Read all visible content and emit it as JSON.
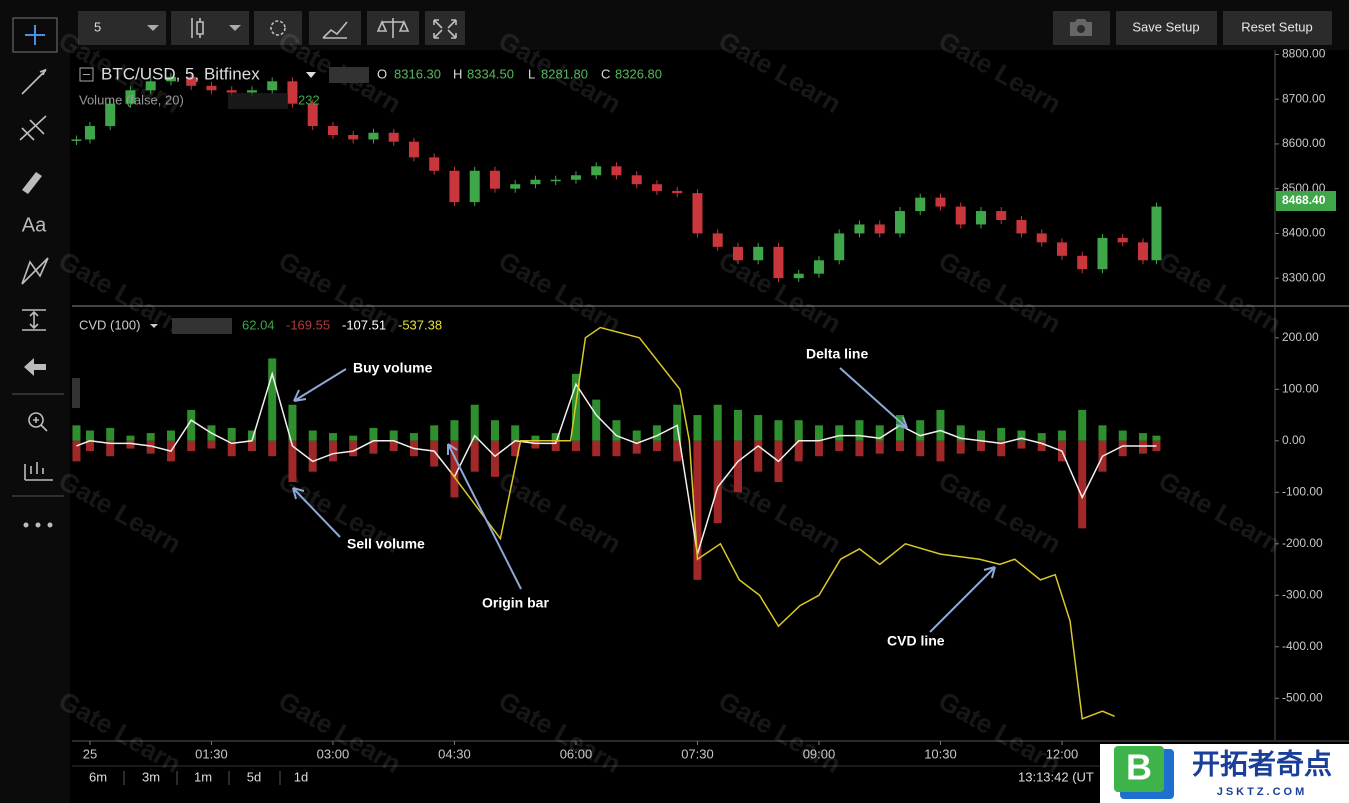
{
  "ui": {
    "interval": "5",
    "save": "Save Setup",
    "reset": "Reset Setup",
    "text_tool": "Aa",
    "watermark": "Gate Learn",
    "price_legend": {
      "symbol": "BTC/USD, 5, Bitfinex",
      "o_label": "O",
      "o": "8316.30",
      "h_label": "H",
      "h": "8334.50",
      "l_label": "L",
      "l": "8281.80",
      "c_label": "C",
      "c": "8326.80"
    },
    "volume_legend": {
      "name": "Volume (false, 20)",
      "value": "232"
    },
    "cvd_legend": {
      "name": "CVD (100)",
      "v1": "62.04",
      "v2": "-169.55",
      "v3": "-107.51",
      "v4": "-537.38"
    },
    "last_price": "8468.40",
    "ranges": [
      "6m",
      "3m",
      "1m",
      "5d",
      "1d"
    ],
    "clock": "13:13:42 (UT",
    "logo": {
      "letter": "B",
      "name": "开拓者奇点",
      "site": "JSKTZ.COM"
    }
  },
  "chart_data": [
    {
      "type": "candlestick",
      "up_color": "#3fa64a",
      "down_color": "#c9373c",
      "x": [
        -10,
        0,
        15,
        30,
        45,
        60,
        75,
        90,
        105,
        120,
        135,
        150,
        165,
        180,
        195,
        210,
        225,
        240,
        255,
        270,
        285,
        300,
        315,
        330,
        345,
        360,
        375,
        390,
        405,
        420,
        435,
        450,
        465,
        480,
        495,
        510,
        525,
        540,
        555,
        570,
        585,
        600,
        615,
        630,
        645,
        660,
        675,
        690,
        705,
        720,
        735,
        750,
        765,
        780,
        790
      ],
      "close": [
        8610,
        8640,
        8690,
        8720,
        8740,
        8750,
        8730,
        8720,
        8715,
        8720,
        8740,
        8690,
        8640,
        8620,
        8610,
        8625,
        8605,
        8570,
        8540,
        8470,
        8540,
        8500,
        8510,
        8520,
        8520,
        8530,
        8550,
        8530,
        8510,
        8495,
        8490,
        8400,
        8370,
        8340,
        8370,
        8300,
        8310,
        8340,
        8400,
        8420,
        8400,
        8450,
        8480,
        8460,
        8420,
        8450,
        8430,
        8400,
        8380,
        8350,
        8320,
        8390,
        8380,
        8340,
        8460
      ],
      "xlim": [
        -13.3,
        877.8
      ],
      "ylim": [
        8240,
        8810
      ],
      "yticks": [
        {
          "value": 8800,
          "label": "8800.00"
        },
        {
          "value": 8700,
          "label": "8700.00"
        },
        {
          "value": 8600,
          "label": "8600.00"
        },
        {
          "value": 8500,
          "label": "8500.00"
        },
        {
          "value": 8400,
          "label": "8400.00"
        },
        {
          "value": 8300,
          "label": "8300.00"
        }
      ]
    },
    {
      "type": "line",
      "xlim": [
        -13.3,
        877.8
      ],
      "ylim": [
        -581,
        254
      ],
      "x": [
        -10,
        0,
        15,
        30,
        45,
        60,
        75,
        90,
        105,
        120,
        135,
        150,
        165,
        180,
        195,
        210,
        225,
        240,
        255,
        270,
        285,
        300,
        315,
        330,
        345,
        360,
        375,
        390,
        405,
        420,
        435,
        450,
        465,
        480,
        495,
        510,
        525,
        540,
        555,
        570,
        585,
        600,
        615,
        630,
        645,
        660,
        675,
        690,
        705,
        720,
        735,
        750,
        765,
        780,
        790
      ],
      "buy": {
        "name": "Buy volume",
        "color": "#2f8f2f",
        "values": [
          30,
          20,
          25,
          10,
          15,
          20,
          60,
          30,
          25,
          20,
          160,
          70,
          20,
          15,
          10,
          25,
          20,
          15,
          30,
          40,
          70,
          40,
          30,
          10,
          15,
          130,
          80,
          40,
          20,
          30,
          70,
          50,
          70,
          60,
          50,
          40,
          40,
          30,
          30,
          40,
          30,
          50,
          40,
          60,
          30,
          20,
          25,
          20,
          15,
          20,
          60,
          30,
          20,
          15,
          10
        ]
      },
      "sell": {
        "name": "Sell volume",
        "color": "#a02828",
        "values": [
          -40,
          -20,
          -30,
          -15,
          -25,
          -40,
          -20,
          -15,
          -30,
          -20,
          -30,
          -80,
          -60,
          -40,
          -30,
          -25,
          -20,
          -30,
          -50,
          -110,
          -60,
          -70,
          -30,
          -15,
          -20,
          -20,
          -30,
          -30,
          -25,
          -20,
          -40,
          -270,
          -160,
          -100,
          -60,
          -80,
          -40,
          -30,
          -20,
          -30,
          -25,
          -20,
          -30,
          -40,
          -25,
          -20,
          -30,
          -15,
          -20,
          -40,
          -170,
          -60,
          -30,
          -25,
          -20
        ]
      },
      "delta": {
        "name": "Delta line",
        "color": "#f0f0f0",
        "values": [
          -10,
          0,
          -5,
          -5,
          -10,
          -20,
          40,
          15,
          -5,
          0,
          130,
          -10,
          -40,
          -25,
          -20,
          0,
          0,
          -15,
          -20,
          -70,
          10,
          -30,
          0,
          -5,
          -5,
          110,
          50,
          10,
          -5,
          10,
          30,
          -220,
          -90,
          -40,
          -10,
          -40,
          0,
          0,
          10,
          10,
          5,
          30,
          10,
          20,
          5,
          0,
          -5,
          5,
          -5,
          -20,
          -110,
          -30,
          -10,
          -10,
          -10
        ]
      },
      "cvd": {
        "name": "CVD line",
        "color": "#d8c828",
        "x": [
          267,
          304,
          319,
          356,
          367,
          378,
          407,
          437,
          444,
          450,
          467,
          481,
          496,
          510,
          526,
          540,
          556,
          570,
          585,
          604,
          630,
          659,
          674,
          685,
          704,
          715,
          726,
          735,
          750,
          759
        ],
        "values": [
          -60,
          -190,
          0,
          0,
          200,
          220,
          200,
          100,
          0,
          -230,
          -200,
          -270,
          -300,
          -360,
          -320,
          -300,
          -230,
          -210,
          -240,
          -200,
          -220,
          -230,
          -240,
          -230,
          -270,
          -260,
          -350,
          -540,
          -525,
          -535
        ]
      },
      "origin_label": "Origin bar",
      "yticks": [
        {
          "value": 200,
          "label": "200.00"
        },
        {
          "value": 100,
          "label": "100.00"
        },
        {
          "value": 0,
          "label": "0.00"
        },
        {
          "value": -100,
          "label": "-100.00"
        },
        {
          "value": -200,
          "label": "-200.00"
        },
        {
          "value": -300,
          "label": "-300.00"
        },
        {
          "value": -400,
          "label": "-400.00"
        },
        {
          "value": -500,
          "label": "-500.00"
        }
      ],
      "xticks": [
        {
          "value": 0,
          "label": "25"
        },
        {
          "value": 90,
          "label": "01:30"
        },
        {
          "value": 180,
          "label": "03:00"
        },
        {
          "value": 270,
          "label": "04:30"
        },
        {
          "value": 360,
          "label": "06:00"
        },
        {
          "value": 450,
          "label": "07:30"
        },
        {
          "value": 540,
          "label": "09:00"
        },
        {
          "value": 630,
          "label": "10:30"
        },
        {
          "value": 720,
          "label": "12:00"
        }
      ]
    }
  ]
}
